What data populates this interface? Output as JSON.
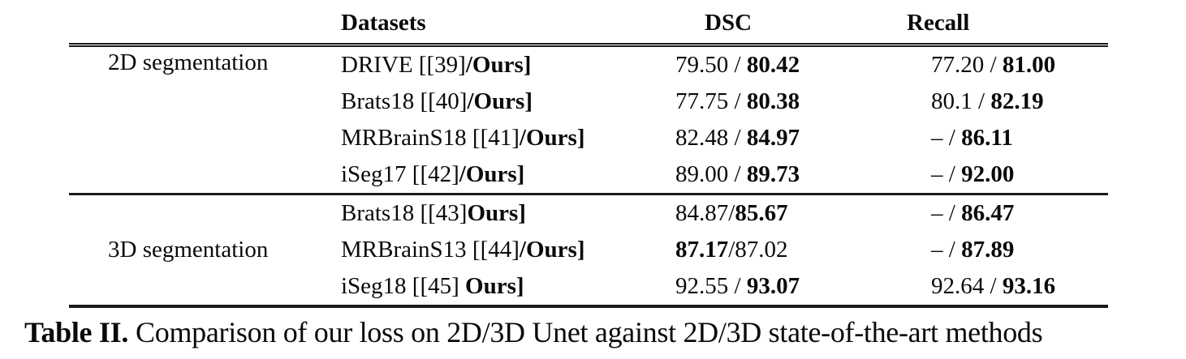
{
  "table": {
    "column_headers": [
      "",
      "Datasets",
      "DSC",
      "Recall"
    ],
    "groups": [
      {
        "label": "2D segmentation",
        "rows": [
          {
            "dataset": [
              {
                "t": "DRIVE [[39]",
                "b": false
              },
              {
                "t": "/Ours]",
                "b": true
              }
            ],
            "dsc": [
              {
                "t": "79.50 / ",
                "b": false
              },
              {
                "t": "80.42",
                "b": true
              }
            ],
            "recall": [
              {
                "t": "77.20 / ",
                "b": false
              },
              {
                "t": "81.00",
                "b": true
              }
            ]
          },
          {
            "dataset": [
              {
                "t": "Brats18 [[40]",
                "b": false
              },
              {
                "t": "/Ours]",
                "b": true
              }
            ],
            "dsc": [
              {
                "t": "77.75 / ",
                "b": false
              },
              {
                "t": "80.38",
                "b": true
              }
            ],
            "recall": [
              {
                "t": "80.1 / ",
                "b": false
              },
              {
                "t": "82.19",
                "b": true
              }
            ]
          },
          {
            "dataset": [
              {
                "t": "MRBrainS18 [[41]",
                "b": false
              },
              {
                "t": "/Ours]",
                "b": true
              }
            ],
            "dsc": [
              {
                "t": "82.48 / ",
                "b": false
              },
              {
                "t": "84.97",
                "b": true
              }
            ],
            "recall": [
              {
                "t": "– / ",
                "b": false
              },
              {
                "t": "86.11",
                "b": true
              }
            ]
          },
          {
            "dataset": [
              {
                "t": "iSeg17 [[42]",
                "b": false
              },
              {
                "t": "/Ours]",
                "b": true
              }
            ],
            "dsc": [
              {
                "t": "89.00 / ",
                "b": false
              },
              {
                "t": "89.73",
                "b": true
              }
            ],
            "recall": [
              {
                "t": "– / ",
                "b": false
              },
              {
                "t": "92.00",
                "b": true
              }
            ]
          }
        ]
      },
      {
        "label": "3D segmentation",
        "rows": [
          {
            "dataset": [
              {
                "t": "Brats18 [[43]",
                "b": false
              },
              {
                "t": "Ours]",
                "b": true
              }
            ],
            "dsc": [
              {
                "t": "84.87/",
                "b": false
              },
              {
                "t": "85.67",
                "b": true
              }
            ],
            "recall": [
              {
                "t": "– / ",
                "b": false
              },
              {
                "t": "86.47",
                "b": true
              }
            ]
          },
          {
            "dataset": [
              {
                "t": "MRBrainS13 [[44]",
                "b": false
              },
              {
                "t": "/Ours]",
                "b": true
              }
            ],
            "dsc": [
              {
                "t": "87.17",
                "b": true
              },
              {
                "t": "/87.02",
                "b": false
              }
            ],
            "recall": [
              {
                "t": "– / ",
                "b": false
              },
              {
                "t": "87.89",
                "b": true
              }
            ]
          },
          {
            "dataset": [
              {
                "t": "iSeg18 [[45] ",
                "b": false
              },
              {
                "t": "Ours]",
                "b": true
              }
            ],
            "dsc": [
              {
                "t": "92.55 / ",
                "b": false
              },
              {
                "t": "93.07",
                "b": true
              }
            ],
            "recall": [
              {
                "t": "92.64 / ",
                "b": false
              },
              {
                "t": "93.16",
                "b": true
              }
            ]
          }
        ]
      }
    ]
  },
  "caption": {
    "label": "Table II.",
    "text": "Comparison of our loss on 2D/3D Unet against 2D/3D state-of-the-art methods"
  },
  "colors": {
    "background": "#ffffff",
    "text": "#0a0a0a",
    "rule": "#1a1a1a"
  }
}
